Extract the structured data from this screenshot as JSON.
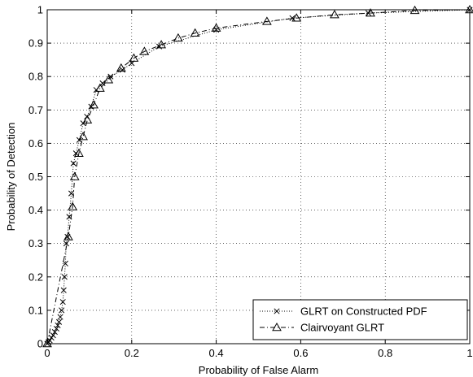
{
  "chart_data": {
    "type": "line",
    "title": "",
    "xlabel": "Probability of False Alarm",
    "ylabel": "Probability of Detection",
    "xlim": [
      0,
      1
    ],
    "ylim": [
      0,
      1
    ],
    "xticks": [
      "0",
      "0.2",
      "0.4",
      "0.6",
      "0.8",
      "1"
    ],
    "yticks": [
      "0",
      "0.1",
      "0.2",
      "0.3",
      "0.4",
      "0.5",
      "0.6",
      "0.7",
      "0.8",
      "0.9",
      "1"
    ],
    "grid": true,
    "legend_position": "bottom-right",
    "series": [
      {
        "name": "GLRT on Constructed PDF",
        "marker": "x",
        "line_style": "dotted",
        "x": [
          0.0,
          0.003,
          0.006,
          0.01,
          0.014,
          0.018,
          0.022,
          0.025,
          0.028,
          0.031,
          0.034,
          0.037,
          0.039,
          0.041,
          0.043,
          0.045,
          0.048,
          0.052,
          0.057,
          0.062,
          0.068,
          0.076,
          0.085,
          0.094,
          0.104,
          0.116,
          0.131,
          0.15,
          0.178,
          0.2,
          0.265,
          0.4,
          0.58,
          0.76,
          1.0
        ],
        "y": [
          0.0,
          0.005,
          0.01,
          0.018,
          0.025,
          0.035,
          0.045,
          0.055,
          0.065,
          0.08,
          0.1,
          0.125,
          0.16,
          0.2,
          0.24,
          0.3,
          0.32,
          0.38,
          0.45,
          0.54,
          0.57,
          0.61,
          0.66,
          0.68,
          0.71,
          0.76,
          0.78,
          0.8,
          0.82,
          0.84,
          0.89,
          0.94,
          0.975,
          0.99,
          1.0
        ]
      },
      {
        "name": "Clairvoyant GLRT",
        "marker": "triangle",
        "line_style": "dash-dot",
        "x": [
          0.0,
          0.05,
          0.06,
          0.065,
          0.075,
          0.085,
          0.095,
          0.11,
          0.125,
          0.145,
          0.175,
          0.205,
          0.23,
          0.27,
          0.31,
          0.35,
          0.4,
          0.52,
          0.59,
          0.68,
          0.765,
          0.87,
          1.0
        ],
        "y": [
          0.0,
          0.32,
          0.41,
          0.5,
          0.57,
          0.62,
          0.67,
          0.715,
          0.765,
          0.79,
          0.825,
          0.855,
          0.875,
          0.895,
          0.915,
          0.93,
          0.945,
          0.965,
          0.975,
          0.985,
          0.99,
          0.998,
          1.0
        ]
      }
    ]
  }
}
